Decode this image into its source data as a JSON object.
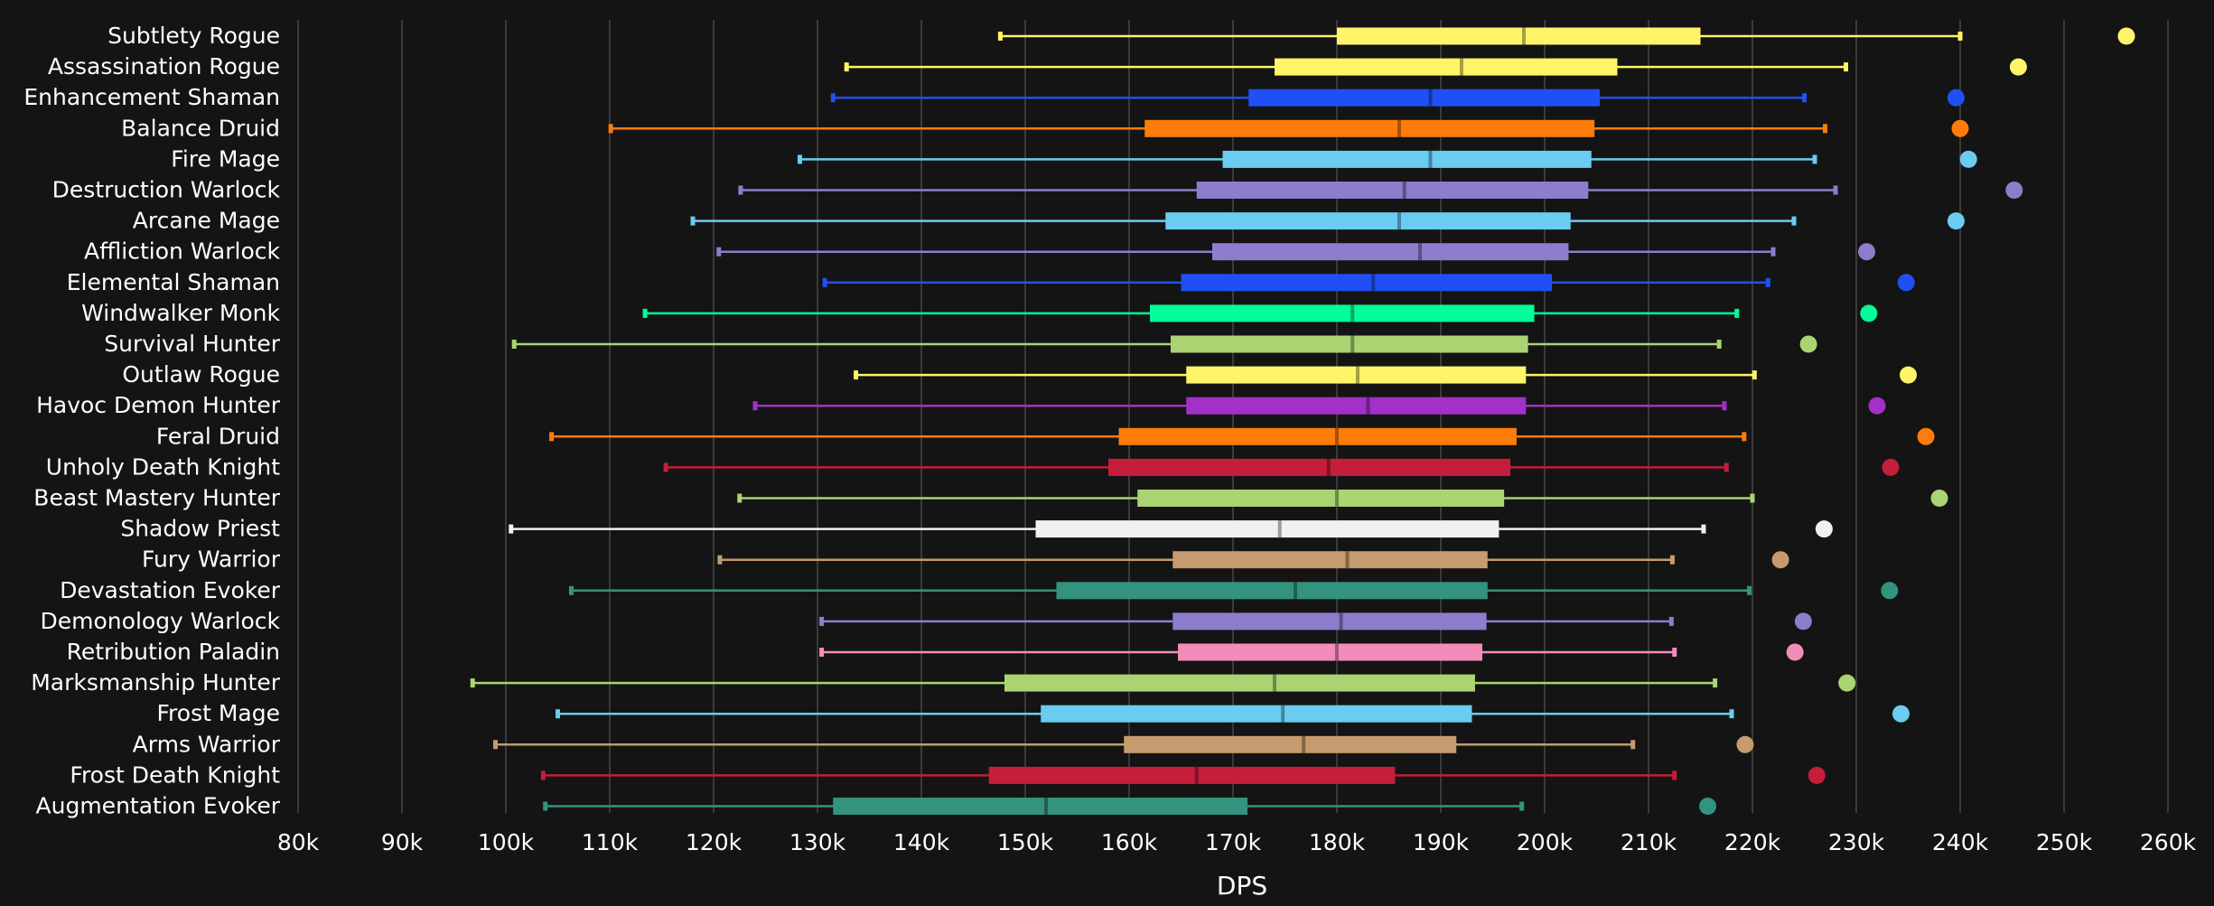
{
  "chart_data": {
    "type": "box",
    "xlabel": "DPS",
    "xlim": [
      80000,
      260000
    ],
    "xticks": [
      80000,
      90000,
      100000,
      110000,
      120000,
      130000,
      140000,
      150000,
      160000,
      170000,
      180000,
      190000,
      200000,
      210000,
      220000,
      230000,
      240000,
      250000,
      260000
    ],
    "xtick_labels": [
      "80k",
      "90k",
      "100k",
      "110k",
      "120k",
      "130k",
      "140k",
      "150k",
      "160k",
      "170k",
      "180k",
      "190k",
      "200k",
      "210k",
      "220k",
      "230k",
      "240k",
      "250k",
      "260k"
    ],
    "grid": "vertical",
    "series": [
      {
        "name": "Subtlety Rogue",
        "color": "#FFF468",
        "min": 147600,
        "q1": 180000,
        "median": 198000,
        "q3": 215000,
        "max": 240000,
        "outlier": 256000
      },
      {
        "name": "Assassination Rogue",
        "color": "#FFF468",
        "min": 132800,
        "q1": 174000,
        "median": 192000,
        "q3": 207000,
        "max": 229000,
        "outlier": 245600
      },
      {
        "name": "Enhancement Shaman",
        "color": "#2050F5",
        "min": 131500,
        "q1": 171500,
        "median": 189000,
        "q3": 205300,
        "max": 225000,
        "outlier": 239600
      },
      {
        "name": "Balance Druid",
        "color": "#FF7C0A",
        "min": 110100,
        "q1": 161500,
        "median": 186000,
        "q3": 204800,
        "max": 227000,
        "outlier": 240000
      },
      {
        "name": "Fire Mage",
        "color": "#69CCF0",
        "min": 128300,
        "q1": 169000,
        "median": 189000,
        "q3": 204500,
        "max": 226000,
        "outlier": 240800
      },
      {
        "name": "Destruction Warlock",
        "color": "#8E7CCC",
        "min": 122600,
        "q1": 166500,
        "median": 186500,
        "q3": 204200,
        "max": 228000,
        "outlier": 245200
      },
      {
        "name": "Arcane Mage",
        "color": "#69CCF0",
        "min": 118000,
        "q1": 163500,
        "median": 186000,
        "q3": 202500,
        "max": 224000,
        "outlier": 239600
      },
      {
        "name": "Affliction Warlock",
        "color": "#8E7CCC",
        "min": 120500,
        "q1": 168000,
        "median": 188000,
        "q3": 202300,
        "max": 222000,
        "outlier": 231000
      },
      {
        "name": "Elemental Shaman",
        "color": "#2050F5",
        "min": 130700,
        "q1": 165000,
        "median": 183500,
        "q3": 200700,
        "max": 221500,
        "outlier": 234800
      },
      {
        "name": "Windwalker Monk",
        "color": "#00FF98",
        "min": 113400,
        "q1": 162000,
        "median": 181500,
        "q3": 199000,
        "max": 218500,
        "outlier": 231200
      },
      {
        "name": "Survival Hunter",
        "color": "#AAD372",
        "min": 100800,
        "q1": 164000,
        "median": 181500,
        "q3": 198400,
        "max": 216800,
        "outlier": 225400
      },
      {
        "name": "Outlaw Rogue",
        "color": "#FFF468",
        "min": 133700,
        "q1": 165500,
        "median": 182000,
        "q3": 198200,
        "max": 220200,
        "outlier": 235000
      },
      {
        "name": "Havoc Demon Hunter",
        "color": "#A330C9",
        "min": 124000,
        "q1": 165500,
        "median": 183000,
        "q3": 198200,
        "max": 217300,
        "outlier": 232000
      },
      {
        "name": "Feral Druid",
        "color": "#FF7C0A",
        "min": 104400,
        "q1": 159000,
        "median": 180000,
        "q3": 197300,
        "max": 219200,
        "outlier": 236700
      },
      {
        "name": "Unholy Death Knight",
        "color": "#C41E3A",
        "min": 115400,
        "q1": 158000,
        "median": 179200,
        "q3": 196700,
        "max": 217500,
        "outlier": 233300
      },
      {
        "name": "Beast Mastery Hunter",
        "color": "#AAD372",
        "min": 122500,
        "q1": 160800,
        "median": 180000,
        "q3": 196100,
        "max": 220000,
        "outlier": 238000
      },
      {
        "name": "Shadow Priest",
        "color": "#F0F0F0",
        "min": 100500,
        "q1": 151000,
        "median": 174500,
        "q3": 195600,
        "max": 215300,
        "outlier": 226900
      },
      {
        "name": "Fury Warrior",
        "color": "#C69B6D",
        "min": 120600,
        "q1": 164200,
        "median": 181000,
        "q3": 194500,
        "max": 212300,
        "outlier": 222700
      },
      {
        "name": "Devastation Evoker",
        "color": "#33937F",
        "min": 106300,
        "q1": 153000,
        "median": 176000,
        "q3": 194500,
        "max": 219700,
        "outlier": 233200
      },
      {
        "name": "Demonology Warlock",
        "color": "#8E7CCC",
        "min": 130400,
        "q1": 164200,
        "median": 180400,
        "q3": 194400,
        "max": 212200,
        "outlier": 224900
      },
      {
        "name": "Retribution Paladin",
        "color": "#F48CBA",
        "min": 130400,
        "q1": 164700,
        "median": 180000,
        "q3": 194000,
        "max": 212500,
        "outlier": 224100
      },
      {
        "name": "Marksmanship Hunter",
        "color": "#AAD372",
        "min": 96800,
        "q1": 148000,
        "median": 174000,
        "q3": 193300,
        "max": 216400,
        "outlier": 229100
      },
      {
        "name": "Frost Mage",
        "color": "#69CCF0",
        "min": 105000,
        "q1": 151500,
        "median": 174800,
        "q3": 193000,
        "max": 218000,
        "outlier": 234300
      },
      {
        "name": "Arms Warrior",
        "color": "#C69B6D",
        "min": 99000,
        "q1": 159500,
        "median": 176800,
        "q3": 191500,
        "max": 208500,
        "outlier": 219300
      },
      {
        "name": "Frost Death Knight",
        "color": "#C41E3A",
        "min": 103600,
        "q1": 146500,
        "median": 166500,
        "q3": 185600,
        "max": 212500,
        "outlier": 226200
      },
      {
        "name": "Augmentation Evoker",
        "color": "#33937F",
        "min": 103800,
        "q1": 131500,
        "median": 152000,
        "q3": 171400,
        "max": 197800,
        "outlier": 215700
      }
    ]
  }
}
